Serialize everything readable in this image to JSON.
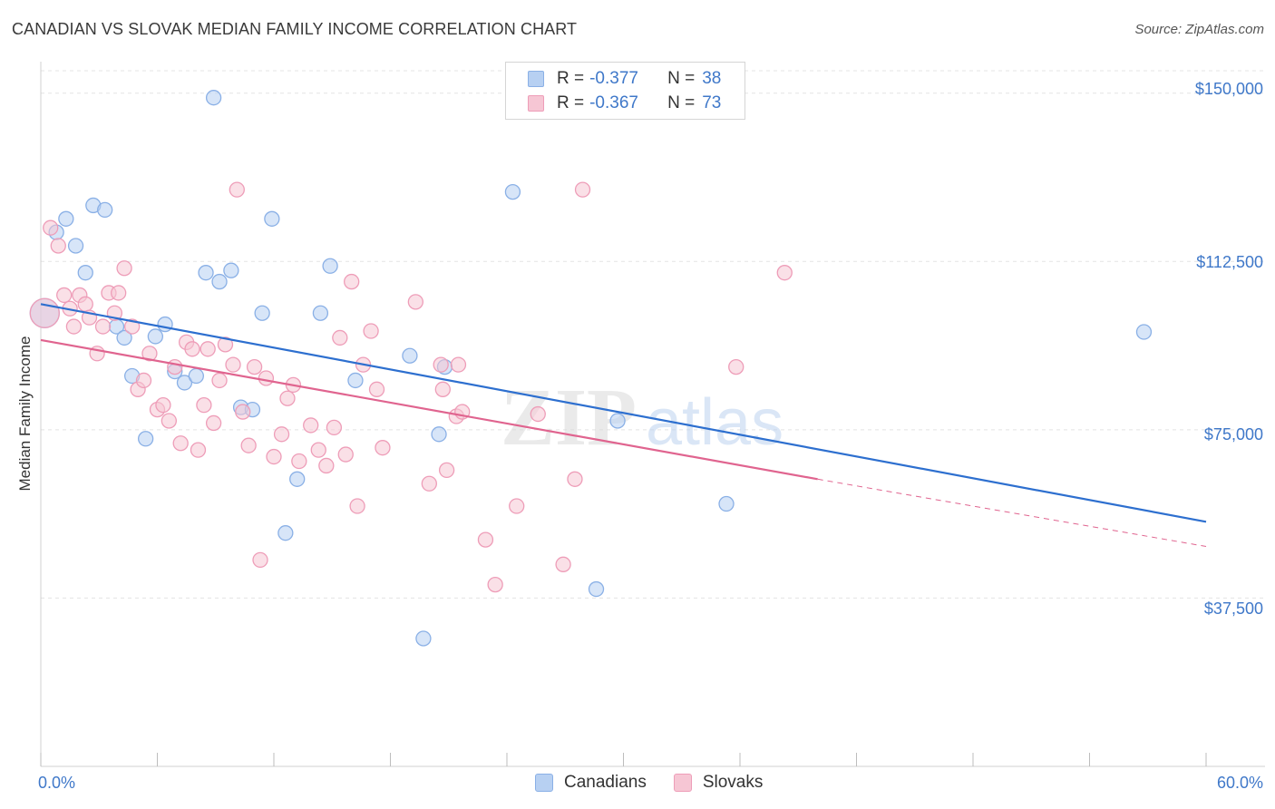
{
  "title": "CANADIAN VS SLOVAK MEDIAN FAMILY INCOME CORRELATION CHART",
  "source": "Source: ZipAtlas.com",
  "watermark": {
    "zip": "ZIP",
    "atlas": "atlas"
  },
  "legend": {
    "rows": [
      {
        "r_label": "R =",
        "r_value": "-0.377",
        "n_label": "N =",
        "n_value": "38"
      },
      {
        "r_label": "R =",
        "r_value": "-0.367",
        "n_label": "N =",
        "n_value": "73"
      }
    ]
  },
  "bottom_legend": {
    "canadians": "Canadians",
    "slovaks": "Slovaks"
  },
  "colors": {
    "canadians_fill": "#b7d0f2",
    "canadians_stroke": "#8ab0e6",
    "canadians_line": "#2d6fcf",
    "slovaks_fill": "#f6c6d4",
    "slovaks_stroke": "#ee9db8",
    "slovaks_line": "#e0648f",
    "axis_text": "#3f78c9",
    "grid": "#e4e4e4"
  },
  "chart_data": {
    "type": "scatter",
    "title": "CANADIAN VS SLOVAK MEDIAN FAMILY INCOME CORRELATION CHART",
    "xlabel": "",
    "ylabel": "Median Family Income",
    "xlim": [
      0,
      60
    ],
    "ylim": [
      0,
      155000
    ],
    "x_tick_labels": [
      "0.0%",
      "60.0%"
    ],
    "y_ticks": [
      37500,
      75000,
      112500,
      150000
    ],
    "y_tick_labels": [
      "$37,500",
      "$75,000",
      "$112,500",
      "$150,000"
    ],
    "grid": true,
    "legend_position": "top-center",
    "series": [
      {
        "name": "Canadians",
        "points": [
          [
            0.2,
            101000
          ],
          [
            0.8,
            119000
          ],
          [
            1.3,
            122000
          ],
          [
            1.8,
            116000
          ],
          [
            2.3,
            110000
          ],
          [
            2.7,
            125000
          ],
          [
            3.3,
            124000
          ],
          [
            3.9,
            98000
          ],
          [
            4.3,
            95500
          ],
          [
            4.7,
            87000
          ],
          [
            5.4,
            73000
          ],
          [
            5.9,
            95800
          ],
          [
            6.4,
            98500
          ],
          [
            6.9,
            88000
          ],
          [
            7.4,
            85500
          ],
          [
            8.0,
            87000
          ],
          [
            8.5,
            110000
          ],
          [
            8.9,
            149000
          ],
          [
            9.2,
            108000
          ],
          [
            9.8,
            110500
          ],
          [
            10.3,
            80000
          ],
          [
            10.9,
            79500
          ],
          [
            11.4,
            101000
          ],
          [
            11.9,
            122000
          ],
          [
            12.6,
            52000
          ],
          [
            13.2,
            64000
          ],
          [
            14.4,
            101000
          ],
          [
            14.9,
            111500
          ],
          [
            16.2,
            86000
          ],
          [
            19.0,
            91500
          ],
          [
            19.7,
            28500
          ],
          [
            20.5,
            74000
          ],
          [
            20.8,
            89000
          ],
          [
            24.3,
            128000
          ],
          [
            28.6,
            39500
          ],
          [
            29.7,
            77000
          ],
          [
            35.3,
            58500
          ],
          [
            56.8,
            96800
          ]
        ],
        "trend": {
          "x": [
            0,
            60
          ],
          "y": [
            103000,
            54500
          ]
        }
      },
      {
        "name": "Slovaks",
        "points": [
          [
            0.2,
            101000
          ],
          [
            0.5,
            120000
          ],
          [
            0.9,
            116000
          ],
          [
            1.2,
            105000
          ],
          [
            1.5,
            102000
          ],
          [
            1.7,
            98000
          ],
          [
            2.0,
            105000
          ],
          [
            2.3,
            103000
          ],
          [
            2.5,
            100000
          ],
          [
            2.9,
            92000
          ],
          [
            3.2,
            98000
          ],
          [
            3.5,
            105500
          ],
          [
            3.8,
            101000
          ],
          [
            4.0,
            105500
          ],
          [
            4.3,
            111000
          ],
          [
            4.7,
            98000
          ],
          [
            5.0,
            84000
          ],
          [
            5.3,
            86000
          ],
          [
            5.6,
            92000
          ],
          [
            6.0,
            79500
          ],
          [
            6.3,
            80500
          ],
          [
            6.6,
            77000
          ],
          [
            6.9,
            89000
          ],
          [
            7.2,
            72000
          ],
          [
            7.5,
            94500
          ],
          [
            7.8,
            93000
          ],
          [
            8.1,
            70500
          ],
          [
            8.4,
            80500
          ],
          [
            8.6,
            93000
          ],
          [
            8.9,
            76500
          ],
          [
            9.2,
            86000
          ],
          [
            9.5,
            94000
          ],
          [
            9.9,
            89500
          ],
          [
            10.1,
            128500
          ],
          [
            10.4,
            79000
          ],
          [
            10.7,
            71500
          ],
          [
            11.0,
            89000
          ],
          [
            11.3,
            46000
          ],
          [
            11.6,
            86500
          ],
          [
            12.0,
            69000
          ],
          [
            12.4,
            74000
          ],
          [
            12.7,
            82000
          ],
          [
            13.0,
            85000
          ],
          [
            13.3,
            68000
          ],
          [
            13.9,
            76000
          ],
          [
            14.3,
            70500
          ],
          [
            14.7,
            67000
          ],
          [
            15.1,
            75500
          ],
          [
            15.4,
            95500
          ],
          [
            15.7,
            69500
          ],
          [
            16.0,
            108000
          ],
          [
            16.3,
            58000
          ],
          [
            16.6,
            89500
          ],
          [
            17.0,
            97000
          ],
          [
            17.3,
            84000
          ],
          [
            17.6,
            71000
          ],
          [
            19.3,
            103500
          ],
          [
            20.0,
            63000
          ],
          [
            20.6,
            89500
          ],
          [
            20.9,
            66000
          ],
          [
            21.4,
            78000
          ],
          [
            21.7,
            79000
          ],
          [
            22.9,
            50500
          ],
          [
            23.4,
            40500
          ],
          [
            24.5,
            58000
          ],
          [
            25.6,
            78500
          ],
          [
            26.9,
            45000
          ],
          [
            27.5,
            64000
          ],
          [
            27.9,
            128500
          ],
          [
            35.8,
            89000
          ],
          [
            38.3,
            110000
          ],
          [
            20.7,
            84000
          ],
          [
            21.5,
            89500
          ]
        ],
        "trend": {
          "x": [
            0,
            40
          ],
          "y": [
            95000,
            64000
          ]
        },
        "trend_extension": {
          "x": [
            40,
            60
          ],
          "y": [
            64000,
            49000
          ]
        }
      }
    ]
  }
}
